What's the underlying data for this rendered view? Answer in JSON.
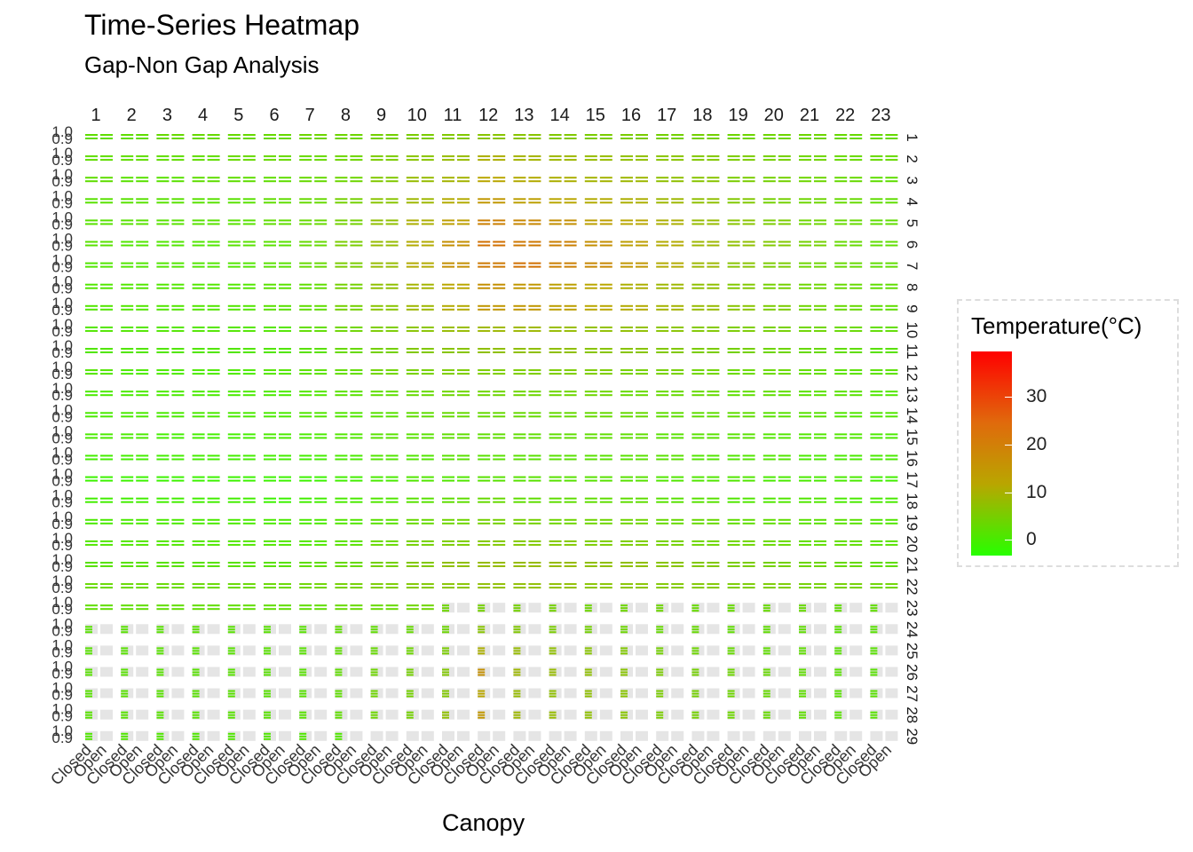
{
  "title": "Time-Series Heatmap",
  "subtitle": "Gap-Non Gap Analysis",
  "chart_data": {
    "type": "heatmap",
    "title": "Time-Series Heatmap",
    "subtitle": "Gap-Non Gap Analysis",
    "xlabel": "Canopy",
    "ylabel": "",
    "x_categories": [
      "Closed",
      "Open"
    ],
    "column_facets": [
      "1",
      "2",
      "3",
      "4",
      "5",
      "6",
      "7",
      "8",
      "9",
      "10",
      "11",
      "12",
      "13",
      "14",
      "15",
      "16",
      "17",
      "18",
      "19",
      "20",
      "21",
      "22",
      "23"
    ],
    "row_facets": [
      "1",
      "2",
      "3",
      "4",
      "5",
      "6",
      "7",
      "8",
      "9",
      "10",
      "11",
      "12",
      "13",
      "14",
      "15",
      "16",
      "17",
      "18",
      "19",
      "20",
      "21",
      "22",
      "23",
      "24",
      "25",
      "26",
      "27",
      "28",
      "29"
    ],
    "y_tick_labels": [
      "0.9",
      "1.0"
    ],
    "color_scale": {
      "low": "#27ff00",
      "mid": "#b9a600",
      "high": "#ff0000",
      "range": [
        -2,
        40
      ]
    },
    "legend": {
      "title": "Temperature(°C)",
      "ticks": [
        0,
        10,
        20,
        30
      ],
      "position": "right"
    },
    "values": [
      [
        6,
        6,
        7,
        7,
        7,
        7,
        8,
        8,
        9,
        10,
        11,
        12,
        12,
        11,
        10,
        10,
        9,
        9,
        8,
        8,
        8,
        7,
        7
      ],
      [
        6,
        6,
        6,
        6,
        7,
        7,
        7,
        8,
        10,
        12,
        14,
        17,
        16,
        15,
        14,
        13,
        12,
        11,
        10,
        9,
        8,
        7,
        7
      ],
      [
        6,
        5,
        5,
        6,
        6,
        6,
        7,
        8,
        11,
        14,
        16,
        19,
        18,
        17,
        16,
        15,
        13,
        12,
        10,
        9,
        8,
        7,
        6
      ],
      [
        5,
        5,
        5,
        5,
        5,
        6,
        7,
        9,
        12,
        15,
        18,
        21,
        20,
        19,
        18,
        17,
        15,
        13,
        11,
        9,
        8,
        7,
        6
      ],
      [
        5,
        5,
        5,
        5,
        5,
        6,
        7,
        9,
        13,
        17,
        20,
        24,
        23,
        22,
        20,
        19,
        17,
        14,
        12,
        10,
        8,
        7,
        6
      ],
      [
        5,
        4,
        4,
        4,
        5,
        5,
        7,
        10,
        14,
        18,
        22,
        26,
        25,
        24,
        22,
        20,
        18,
        15,
        13,
        11,
        9,
        7,
        6
      ],
      [
        4,
        4,
        4,
        4,
        4,
        5,
        7,
        10,
        14,
        18,
        22,
        25,
        26,
        24,
        23,
        21,
        18,
        15,
        12,
        10,
        8,
        7,
        6
      ],
      [
        4,
        4,
        4,
        4,
        4,
        5,
        6,
        9,
        13,
        16,
        19,
        22,
        21,
        20,
        19,
        17,
        15,
        13,
        11,
        9,
        8,
        7,
        6
      ],
      [
        4,
        4,
        4,
        4,
        4,
        5,
        6,
        9,
        12,
        15,
        18,
        21,
        21,
        20,
        19,
        18,
        16,
        14,
        12,
        10,
        8,
        7,
        6
      ],
      [
        4,
        4,
        4,
        4,
        4,
        4,
        6,
        8,
        10,
        12,
        14,
        15,
        15,
        14,
        13,
        13,
        12,
        11,
        10,
        9,
        8,
        7,
        6
      ],
      [
        4,
        4,
        4,
        4,
        4,
        4,
        5,
        7,
        9,
        11,
        12,
        13,
        13,
        13,
        12,
        12,
        11,
        10,
        9,
        8,
        7,
        6,
        5
      ],
      [
        4,
        3,
        3,
        3,
        3,
        4,
        5,
        6,
        8,
        9,
        10,
        10,
        10,
        10,
        10,
        9,
        9,
        8,
        7,
        7,
        6,
        5,
        5
      ],
      [
        3,
        3,
        3,
        3,
        3,
        3,
        4,
        5,
        6,
        7,
        8,
        8,
        8,
        8,
        8,
        7,
        7,
        7,
        6,
        6,
        5,
        5,
        4
      ],
      [
        3,
        3,
        3,
        3,
        3,
        3,
        4,
        4,
        5,
        6,
        7,
        7,
        7,
        7,
        7,
        7,
        6,
        6,
        6,
        5,
        5,
        4,
        4
      ],
      [
        3,
        3,
        2,
        2,
        2,
        3,
        3,
        4,
        5,
        5,
        6,
        6,
        6,
        6,
        6,
        6,
        5,
        5,
        5,
        4,
        4,
        4,
        3
      ],
      [
        2,
        2,
        2,
        2,
        2,
        2,
        2,
        3,
        4,
        4,
        5,
        5,
        5,
        5,
        5,
        5,
        5,
        4,
        4,
        4,
        3,
        3,
        3
      ],
      [
        1,
        1,
        1,
        1,
        1,
        1,
        1,
        2,
        3,
        4,
        4,
        5,
        5,
        5,
        5,
        5,
        4,
        4,
        4,
        3,
        3,
        3,
        2
      ],
      [
        2,
        2,
        2,
        2,
        2,
        1,
        2,
        3,
        4,
        5,
        6,
        7,
        6,
        6,
        6,
        6,
        5,
        5,
        4,
        4,
        4,
        3,
        3
      ],
      [
        3,
        3,
        3,
        3,
        3,
        3,
        3,
        4,
        5,
        7,
        8,
        9,
        9,
        8,
        8,
        8,
        7,
        7,
        6,
        6,
        5,
        5,
        4
      ],
      [
        4,
        4,
        4,
        4,
        4,
        4,
        4,
        5,
        7,
        9,
        10,
        11,
        11,
        11,
        10,
        10,
        9,
        8,
        8,
        7,
        6,
        6,
        5
      ],
      [
        5,
        5,
        5,
        5,
        5,
        5,
        6,
        7,
        9,
        11,
        13,
        14,
        14,
        14,
        13,
        13,
        12,
        11,
        10,
        9,
        8,
        7,
        6
      ],
      [
        7,
        7,
        7,
        7,
        7,
        7,
        8,
        9,
        10,
        11,
        12,
        13,
        13,
        13,
        12,
        12,
        11,
        11,
        10,
        10,
        9,
        9,
        8
      ],
      [
        6,
        6,
        6,
        6,
        6,
        6,
        6,
        7,
        7,
        8,
        8,
        9,
        9,
        9,
        8,
        8,
        8,
        7,
        7,
        7,
        7,
        6,
        6
      ],
      [
        5,
        5,
        5,
        5,
        5,
        5,
        5,
        6,
        6,
        7,
        8,
        12,
        11,
        10,
        9,
        8,
        7,
        7,
        6,
        6,
        6,
        5,
        5
      ],
      [
        5,
        5,
        5,
        5,
        5,
        5,
        5,
        6,
        7,
        8,
        10,
        17,
        14,
        13,
        12,
        11,
        9,
        8,
        7,
        6,
        6,
        5,
        5
      ],
      [
        5,
        5,
        5,
        5,
        5,
        5,
        5,
        6,
        8,
        9,
        11,
        22,
        15,
        14,
        13,
        12,
        10,
        9,
        8,
        7,
        6,
        5,
        5
      ],
      [
        5,
        5,
        5,
        5,
        5,
        5,
        5,
        6,
        8,
        9,
        11,
        19,
        14,
        13,
        13,
        12,
        10,
        9,
        8,
        7,
        6,
        5,
        5
      ],
      [
        5,
        5,
        5,
        5,
        5,
        5,
        5,
        6,
        8,
        9,
        13,
        21,
        15,
        14,
        13,
        12,
        10,
        9,
        8,
        7,
        6,
        5,
        5
      ],
      [
        4,
        4,
        4,
        4,
        4,
        4,
        4,
        4,
        null,
        null,
        null,
        null,
        null,
        null,
        null,
        null,
        null,
        null,
        null,
        null,
        null,
        null,
        null
      ]
    ],
    "missing_open": [
      [
        0,
        0,
        0,
        0,
        0,
        0,
        0,
        0,
        0,
        0,
        0,
        0,
        0,
        0,
        0,
        0,
        0,
        0,
        0,
        0,
        0,
        0,
        0
      ],
      [
        0,
        0,
        0,
        0,
        0,
        0,
        0,
        0,
        0,
        0,
        0,
        0,
        0,
        0,
        0,
        0,
        0,
        0,
        0,
        0,
        0,
        0,
        0
      ],
      [
        0,
        0,
        0,
        0,
        0,
        0,
        0,
        0,
        0,
        0,
        0,
        0,
        0,
        0,
        0,
        0,
        0,
        0,
        0,
        0,
        0,
        0,
        0
      ],
      [
        0,
        0,
        0,
        0,
        0,
        0,
        0,
        0,
        0,
        0,
        0,
        0,
        0,
        0,
        0,
        0,
        0,
        0,
        0,
        0,
        0,
        0,
        0
      ],
      [
        0,
        0,
        0,
        0,
        0,
        0,
        0,
        0,
        0,
        0,
        0,
        0,
        0,
        0,
        0,
        0,
        0,
        0,
        0,
        0,
        0,
        0,
        0
      ],
      [
        0,
        0,
        0,
        0,
        0,
        0,
        0,
        0,
        0,
        0,
        0,
        0,
        0,
        0,
        0,
        0,
        0,
        0,
        0,
        0,
        0,
        0,
        0
      ],
      [
        0,
        0,
        0,
        0,
        0,
        0,
        0,
        0,
        0,
        0,
        0,
        0,
        0,
        0,
        0,
        0,
        0,
        0,
        0,
        0,
        0,
        0,
        0
      ],
      [
        0,
        0,
        0,
        0,
        0,
        0,
        0,
        0,
        0,
        0,
        0,
        0,
        0,
        0,
        0,
        0,
        0,
        0,
        0,
        0,
        0,
        0,
        0
      ],
      [
        0,
        0,
        0,
        0,
        0,
        0,
        0,
        0,
        0,
        0,
        0,
        0,
        0,
        0,
        0,
        0,
        0,
        0,
        0,
        0,
        0,
        0,
        0
      ],
      [
        0,
        0,
        0,
        0,
        0,
        0,
        0,
        0,
        0,
        0,
        0,
        0,
        0,
        0,
        0,
        0,
        0,
        0,
        0,
        0,
        0,
        0,
        0
      ],
      [
        0,
        0,
        0,
        0,
        0,
        0,
        0,
        0,
        0,
        0,
        0,
        0,
        0,
        0,
        0,
        0,
        0,
        0,
        0,
        0,
        0,
        0,
        0
      ],
      [
        0,
        0,
        0,
        0,
        0,
        0,
        0,
        0,
        0,
        0,
        0,
        0,
        0,
        0,
        0,
        0,
        0,
        0,
        0,
        0,
        0,
        0,
        0
      ],
      [
        0,
        0,
        0,
        0,
        0,
        0,
        0,
        0,
        0,
        0,
        0,
        0,
        0,
        0,
        0,
        0,
        0,
        0,
        0,
        0,
        0,
        0,
        0
      ],
      [
        0,
        0,
        0,
        0,
        0,
        0,
        0,
        0,
        0,
        0,
        0,
        0,
        0,
        0,
        0,
        0,
        0,
        0,
        0,
        0,
        0,
        0,
        0
      ],
      [
        0,
        0,
        0,
        0,
        0,
        0,
        0,
        0,
        0,
        0,
        0,
        0,
        0,
        0,
        0,
        0,
        0,
        0,
        0,
        0,
        0,
        0,
        0
      ],
      [
        0,
        0,
        0,
        0,
        0,
        0,
        0,
        0,
        0,
        0,
        0,
        0,
        0,
        0,
        0,
        0,
        0,
        0,
        0,
        0,
        0,
        0,
        0
      ],
      [
        0,
        0,
        0,
        0,
        0,
        0,
        0,
        0,
        0,
        0,
        0,
        0,
        0,
        0,
        0,
        0,
        0,
        0,
        0,
        0,
        0,
        0,
        0
      ],
      [
        0,
        0,
        0,
        0,
        0,
        0,
        0,
        0,
        0,
        0,
        0,
        0,
        0,
        0,
        0,
        0,
        0,
        0,
        0,
        0,
        0,
        0,
        0
      ],
      [
        0,
        0,
        0,
        0,
        0,
        0,
        0,
        0,
        0,
        0,
        0,
        0,
        0,
        0,
        0,
        0,
        0,
        0,
        0,
        0,
        0,
        0,
        0
      ],
      [
        0,
        0,
        0,
        0,
        0,
        0,
        0,
        0,
        0,
        0,
        0,
        0,
        0,
        0,
        0,
        0,
        0,
        0,
        0,
        0,
        0,
        0,
        0
      ],
      [
        0,
        0,
        0,
        0,
        0,
        0,
        0,
        0,
        0,
        0,
        0,
        0,
        0,
        0,
        0,
        0,
        0,
        0,
        0,
        0,
        0,
        0,
        0
      ],
      [
        0,
        0,
        0,
        0,
        0,
        0,
        0,
        0,
        0,
        0,
        0,
        0,
        0,
        0,
        0,
        0,
        0,
        0,
        0,
        0,
        0,
        0,
        0
      ],
      [
        0,
        0,
        0,
        0,
        0,
        0,
        0,
        0,
        0,
        0,
        1,
        1,
        1,
        1,
        1,
        1,
        1,
        1,
        1,
        1,
        1,
        1,
        1
      ],
      [
        1,
        1,
        1,
        1,
        1,
        1,
        1,
        1,
        1,
        1,
        1,
        1,
        1,
        1,
        1,
        1,
        1,
        1,
        1,
        1,
        1,
        1,
        1
      ],
      [
        1,
        1,
        1,
        1,
        1,
        1,
        1,
        1,
        1,
        1,
        1,
        1,
        1,
        1,
        1,
        1,
        1,
        1,
        1,
        1,
        1,
        1,
        1
      ],
      [
        1,
        1,
        1,
        1,
        1,
        1,
        1,
        1,
        1,
        1,
        1,
        1,
        1,
        1,
        1,
        1,
        1,
        1,
        1,
        1,
        1,
        1,
        1
      ],
      [
        1,
        1,
        1,
        1,
        1,
        1,
        1,
        1,
        1,
        1,
        1,
        1,
        1,
        1,
        1,
        1,
        1,
        1,
        1,
        1,
        1,
        1,
        1
      ],
      [
        1,
        1,
        1,
        1,
        1,
        1,
        1,
        1,
        1,
        1,
        1,
        1,
        1,
        1,
        1,
        1,
        1,
        1,
        1,
        1,
        1,
        1,
        1
      ],
      [
        1,
        1,
        1,
        1,
        1,
        1,
        1,
        1,
        1,
        1,
        1,
        1,
        1,
        1,
        1,
        1,
        1,
        1,
        1,
        1,
        1,
        1,
        1
      ]
    ]
  }
}
